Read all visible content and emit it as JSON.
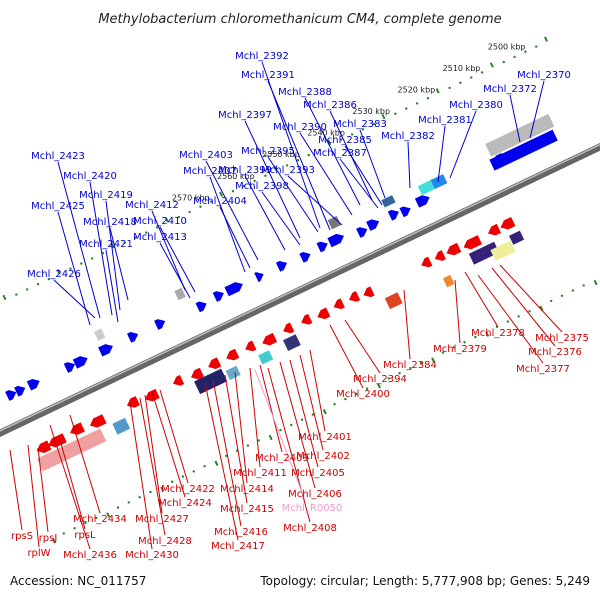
{
  "title": "Methylobacterium chloromethanicum CM4, complete genome",
  "footer": {
    "accession": "Accession: NC_011757",
    "summary": "Topology: circular; Length: 5,777,908 bp; Genes: 5,249"
  },
  "colors": {
    "forward_label": "#0000cc",
    "reverse_label": "#cc0000",
    "rna_label": "#ee99cc",
    "forward_gene": "#0000ee",
    "reverse_gene": "#ee0000",
    "backbone": "#666666",
    "tick": "#228822"
  },
  "scale_labels": [
    "2500 kbp",
    "2510 kbp",
    "2520 kbp",
    "2530 kbp",
    "2540 kbp",
    "2550 kbp",
    "2560 kbp",
    "2570 kbp"
  ],
  "forward_labels": [
    "Mchl_2370",
    "Mchl_2372",
    "Mchl_2380",
    "Mchl_2381",
    "Mchl_2382",
    "Mchl_2383",
    "Mchl_2385",
    "Mchl_2387",
    "Mchl_2386",
    "Mchl_2388",
    "Mchl_2390",
    "Mchl_2391",
    "Mchl_2392",
    "Mchl_2393",
    "Mchl_2395",
    "Mchl_2397",
    "Mchl_2398",
    "Mchl_2399",
    "Mchl_2403",
    "Mchl_2404",
    "Mchl_2407",
    "Mchl_2410",
    "Mchl_2412",
    "Mchl_2413",
    "Mchl_2418",
    "Mchl_2419",
    "Mchl_2420",
    "Mchl_2421",
    "Mchl_2423",
    "Mchl_2425",
    "Mchl_2426"
  ],
  "reverse_labels": [
    "Mchl_2375",
    "Mchl_2376",
    "Mchl_2377",
    "Mchl_2378",
    "Mchl_2379",
    "Mchl_2384",
    "Mchl_2394",
    "Mchl_2400",
    "Mchl_2401",
    "Mchl_2402",
    "Mchl_2405",
    "Mchl_2406",
    "Mchl_2408",
    "Mchl_2409",
    "Mchl_2411",
    "Mchl_2414",
    "Mchl_2415",
    "Mchl_2416",
    "Mchl_2417",
    "Mchl_2422",
    "Mchl_2424",
    "Mchl_2427",
    "Mchl_2428",
    "Mchl_2430",
    "Mchl_2434",
    "Mchl_2436",
    "rpsS",
    "rpsJ",
    "rplW",
    "rpsL"
  ],
  "rna_labels": [
    "Mchl_R0050"
  ]
}
